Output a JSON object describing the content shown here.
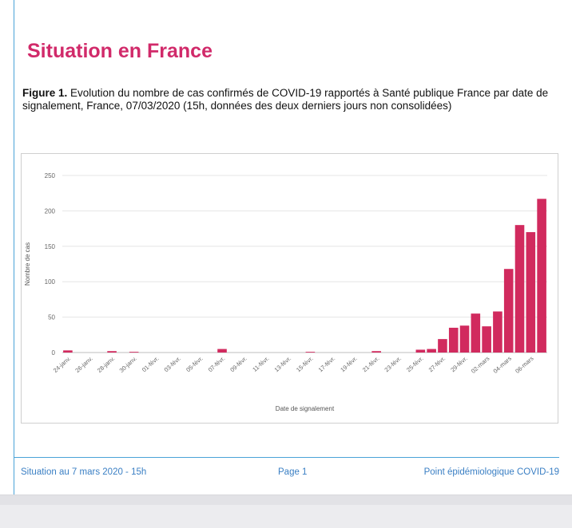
{
  "section_title": "Situation en France",
  "figure_caption": {
    "label": "Figure 1.",
    "text": "Evolution du nombre de cas confirmés de COVID-19 rapportés à Santé publique France par date de signalement, France, 07/03/2020 (15h, données des deux derniers jours non consolidées)"
  },
  "chart_data": {
    "type": "bar",
    "title": "",
    "xlabel": "Date de signalement",
    "ylabel": "Nombre de cas",
    "ylim": [
      0,
      250
    ],
    "yticks": [
      0,
      50,
      100,
      150,
      200,
      250
    ],
    "grid": true,
    "bar_color": "#d12a5e",
    "x_tick_labels": [
      "24-janv.",
      "26-janv.",
      "28-janv.",
      "30-janv.",
      "01-févr.",
      "03-févr.",
      "05-févr.",
      "07-févr.",
      "09-févr.",
      "11-févr.",
      "13-févr.",
      "15-févr.",
      "17-févr.",
      "19-févr.",
      "21-févr.",
      "23-févr.",
      "25-févr.",
      "27-févr.",
      "29-févr.",
      "02-mars",
      "04-mars",
      "06-mars"
    ],
    "categories": [
      "24-janv.",
      "25-janv.",
      "26-janv.",
      "27-janv.",
      "28-janv.",
      "29-janv.",
      "30-janv.",
      "31-janv.",
      "01-févr.",
      "02-févr.",
      "03-févr.",
      "04-févr.",
      "05-févr.",
      "06-févr.",
      "07-févr.",
      "08-févr.",
      "09-févr.",
      "10-févr.",
      "11-févr.",
      "12-févr.",
      "13-févr.",
      "14-févr.",
      "15-févr.",
      "16-févr.",
      "17-févr.",
      "18-févr.",
      "19-févr.",
      "20-févr.",
      "21-févr.",
      "22-févr.",
      "23-févr.",
      "24-févr.",
      "25-févr.",
      "26-févr.",
      "27-févr.",
      "28-févr.",
      "29-févr.",
      "01-mars",
      "02-mars",
      "03-mars",
      "04-mars",
      "05-mars",
      "06-mars",
      "07-mars"
    ],
    "values": [
      3,
      0,
      0,
      0,
      2,
      0,
      1,
      0,
      0,
      0,
      0,
      0,
      0,
      0,
      5,
      0,
      0,
      0,
      0,
      0,
      0,
      0,
      1,
      0,
      0,
      0,
      0,
      0,
      2,
      0,
      0,
      0,
      4,
      5,
      19,
      35,
      38,
      55,
      37,
      58,
      118,
      180,
      170,
      217
    ]
  },
  "footer": {
    "left": "Situation au 7 mars 2020 - 15h",
    "center": "Page 1",
    "right": "Point épidémiologique COVID-19"
  },
  "colors": {
    "title": "#d12a6a",
    "rule": "#4aa3d8",
    "footer_text": "#3a7fc4"
  }
}
